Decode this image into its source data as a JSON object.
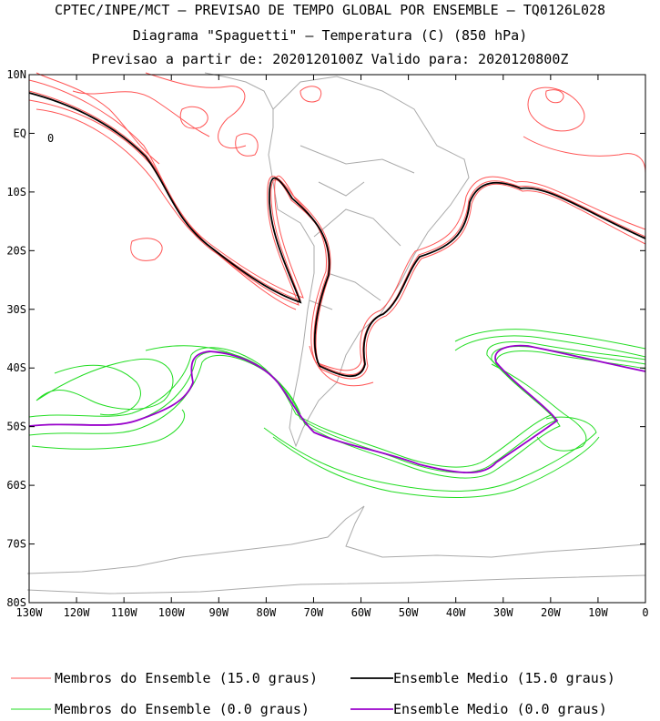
{
  "titles": {
    "line1": "CPTEC/INPE/MCT — PREVISAO DE TEMPO GLOBAL POR ENSEMBLE — TQ0126L028",
    "line2": "Diagrama \"Spaguetti\" — Temperatura (C) (850 hPa)",
    "line3": "Previsao a partir de: 2020120100Z  Valido para: 2020120800Z"
  },
  "map": {
    "lon_range": [
      -130,
      0
    ],
    "lat_range": [
      -80,
      10
    ],
    "lat_labels": [
      "10N",
      "EQ",
      "10S",
      "20S",
      "30S",
      "40S",
      "50S",
      "60S",
      "70S",
      "80S"
    ],
    "lon_labels": [
      "130W",
      "120W",
      "110W",
      "100W",
      "90W",
      "80W",
      "70W",
      "60W",
      "50W",
      "40W",
      "30W",
      "20W",
      "10W",
      "0"
    ],
    "colors": {
      "member_15": "#ff5555",
      "mean_15": "#000000",
      "member_0": "#22dd22",
      "mean_0": "#9900cc",
      "coast": "#aaaaaa"
    },
    "contour_15_label": "0"
  },
  "legend": [
    {
      "label": "Membros do Ensemble (15.0 graus)",
      "color": "#ff5555"
    },
    {
      "label": "Ensemble Medio (15.0 graus)",
      "color": "#000000"
    },
    {
      "label": "Membros do Ensemble (0.0 graus)",
      "color": "#22dd22"
    },
    {
      "label": "Ensemble Medio (0.0 graus)",
      "color": "#9900cc"
    }
  ]
}
